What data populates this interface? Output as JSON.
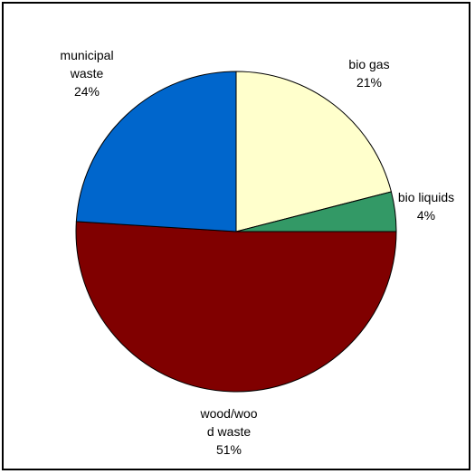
{
  "chart_data": {
    "type": "pie",
    "title": "",
    "slices": [
      {
        "label_lines": [
          "bio gas",
          "21%"
        ],
        "value": 21,
        "color": "#FFFFCC"
      },
      {
        "label_lines": [
          "bio liquids",
          "4%"
        ],
        "value": 4,
        "color": "#339966"
      },
      {
        "label_lines": [
          "wood/woo",
          "d waste",
          "51%"
        ],
        "value": 51,
        "color": "#800000"
      },
      {
        "label_lines": [
          "municipal",
          "waste",
          "24%"
        ],
        "value": 24,
        "color": "#0066CC"
      }
    ],
    "start_angle_deg": 0,
    "direction": "clockwise",
    "legend": "none"
  }
}
